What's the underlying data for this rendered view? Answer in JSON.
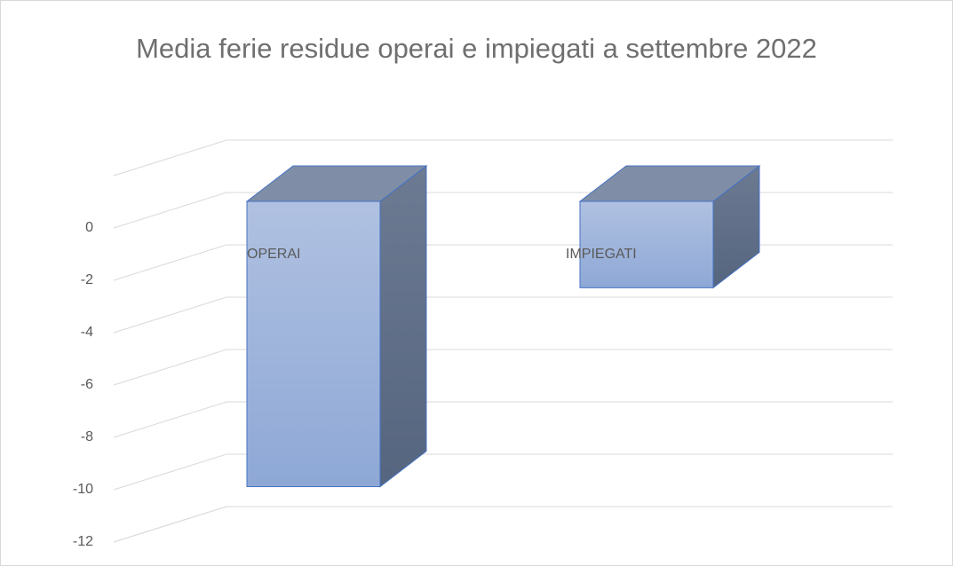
{
  "chart_data": {
    "type": "bar3d",
    "title": "Media ferie residue operai e impiegati  a settembre 2022",
    "categories": [
      "OPERAI",
      "IMPIEGATI"
    ],
    "values": [
      -10.9,
      -3.3
    ],
    "ylim": [
      -12,
      2
    ],
    "yticks": [
      -12,
      -10,
      -8,
      -6,
      -4,
      -2,
      0
    ],
    "grid": true,
    "color": "#8faad8"
  }
}
